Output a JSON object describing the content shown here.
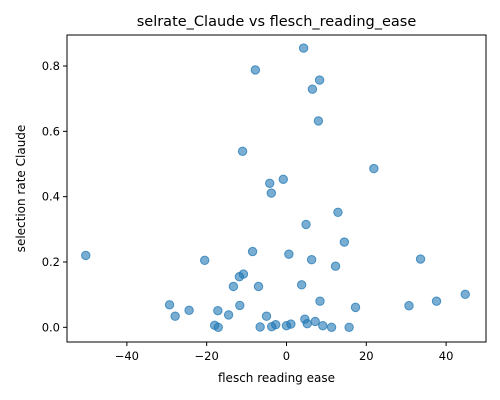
{
  "chart_data": {
    "type": "scatter",
    "title": "selrate_Claude vs flesch_reading_ease",
    "xlabel": "flesch reading ease",
    "ylabel": "selection rate Claude",
    "xlim": [
      -55,
      50
    ],
    "ylim": [
      -0.045,
      0.895
    ],
    "xticks": [
      -40,
      -20,
      0,
      20,
      40
    ],
    "xtick_labels": [
      "−40",
      "−20",
      "0",
      "20",
      "40"
    ],
    "yticks": [
      0.0,
      0.2,
      0.4,
      0.6,
      0.8
    ],
    "ytick_labels": [
      "0.0",
      "0.2",
      "0.4",
      "0.6",
      "0.8"
    ],
    "grid": false,
    "points": [
      {
        "x": 4.3,
        "y": 0.855
      },
      {
        "x": -7.8,
        "y": 0.788
      },
      {
        "x": 8.3,
        "y": 0.757
      },
      {
        "x": 6.5,
        "y": 0.729
      },
      {
        "x": 8.0,
        "y": 0.632
      },
      {
        "x": -11.0,
        "y": 0.539
      },
      {
        "x": 21.9,
        "y": 0.486
      },
      {
        "x": -0.8,
        "y": 0.453
      },
      {
        "x": -4.2,
        "y": 0.441
      },
      {
        "x": -3.8,
        "y": 0.411
      },
      {
        "x": 12.9,
        "y": 0.352
      },
      {
        "x": 4.9,
        "y": 0.315
      },
      {
        "x": 14.5,
        "y": 0.261
      },
      {
        "x": -8.5,
        "y": 0.232
      },
      {
        "x": 0.6,
        "y": 0.224
      },
      {
        "x": -50.3,
        "y": 0.22
      },
      {
        "x": 33.6,
        "y": 0.209
      },
      {
        "x": 6.3,
        "y": 0.207
      },
      {
        "x": -20.5,
        "y": 0.205
      },
      {
        "x": 12.3,
        "y": 0.187
      },
      {
        "x": -10.8,
        "y": 0.163
      },
      {
        "x": -11.8,
        "y": 0.155
      },
      {
        "x": 3.8,
        "y": 0.13
      },
      {
        "x": -13.3,
        "y": 0.125
      },
      {
        "x": -7.0,
        "y": 0.125
      },
      {
        "x": 44.8,
        "y": 0.101
      },
      {
        "x": 8.4,
        "y": 0.08
      },
      {
        "x": 37.6,
        "y": 0.08
      },
      {
        "x": -29.3,
        "y": 0.069
      },
      {
        "x": -11.7,
        "y": 0.067
      },
      {
        "x": 30.7,
        "y": 0.066
      },
      {
        "x": 17.3,
        "y": 0.061
      },
      {
        "x": -24.4,
        "y": 0.052
      },
      {
        "x": -17.2,
        "y": 0.051
      },
      {
        "x": -14.5,
        "y": 0.038
      },
      {
        "x": -27.9,
        "y": 0.034
      },
      {
        "x": -5.0,
        "y": 0.034
      },
      {
        "x": 4.6,
        "y": 0.025
      },
      {
        "x": 7.2,
        "y": 0.018
      },
      {
        "x": 5.2,
        "y": 0.011
      },
      {
        "x": 1.1,
        "y": 0.01
      },
      {
        "x": -2.7,
        "y": 0.008
      },
      {
        "x": -18.0,
        "y": 0.006
      },
      {
        "x": 9.1,
        "y": 0.005
      },
      {
        "x": 0.0,
        "y": 0.005
      },
      {
        "x": -3.7,
        "y": 0.002
      },
      {
        "x": -6.6,
        "y": 0.001
      },
      {
        "x": -17.1,
        "y": 0.0
      },
      {
        "x": 11.3,
        "y": 0.0
      },
      {
        "x": 15.7,
        "y": 0.0
      }
    ]
  }
}
